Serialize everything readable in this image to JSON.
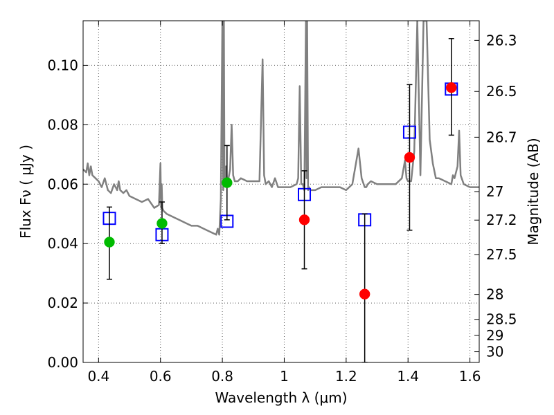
{
  "chart_data": {
    "type": "scatter",
    "xlabel": "Wavelength  λ (μm)",
    "ylabel": "Flux  Fν  ( μJy )",
    "ylabel_right": "Magnitude (AB)",
    "xlim": [
      0.35,
      1.63
    ],
    "ylim": [
      0.0,
      0.115
    ],
    "grid": true,
    "x_ticks": [
      0.4,
      0.6,
      0.8,
      1.0,
      1.2,
      1.4,
      1.6
    ],
    "x_tick_labels": [
      "0.4",
      "0.6",
      "0.8",
      "1",
      "1.2",
      "1.4",
      "1.6"
    ],
    "y_ticks": [
      0.0,
      0.02,
      0.04,
      0.06,
      0.08,
      0.1
    ],
    "y_tick_labels": [
      "0.00",
      "0.02",
      "0.04",
      "0.06",
      "0.08",
      "0.10"
    ],
    "right_ticks": [
      {
        "label": "26.3",
        "flux": 0.1084
      },
      {
        "label": "26.5",
        "flux": 0.0912
      },
      {
        "label": "26.7",
        "flux": 0.0758
      },
      {
        "label": "27",
        "flux": 0.0575
      },
      {
        "label": "27.2",
        "flux": 0.0479
      },
      {
        "label": "27.5",
        "flux": 0.0363
      },
      {
        "label": "28",
        "flux": 0.0229
      },
      {
        "label": "28.5",
        "flux": 0.0145
      },
      {
        "label": "29",
        "flux": 0.0091
      },
      {
        "label": "30",
        "flux": 0.0036
      }
    ],
    "series": [
      {
        "name": "Model spectrum",
        "kind": "line",
        "color": "#808080",
        "x": [
          0.35,
          0.36,
          0.365,
          0.37,
          0.375,
          0.38,
          0.39,
          0.4,
          0.41,
          0.42,
          0.43,
          0.44,
          0.45,
          0.46,
          0.465,
          0.47,
          0.48,
          0.49,
          0.5,
          0.52,
          0.54,
          0.56,
          0.58,
          0.595,
          0.6,
          0.602,
          0.604,
          0.606,
          0.61,
          0.62,
          0.64,
          0.66,
          0.68,
          0.7,
          0.72,
          0.74,
          0.76,
          0.78,
          0.785,
          0.79,
          0.795,
          0.8,
          0.803,
          0.805,
          0.807,
          0.81,
          0.812,
          0.815,
          0.82,
          0.825,
          0.83,
          0.835,
          0.84,
          0.85,
          0.86,
          0.88,
          0.9,
          0.92,
          0.93,
          0.935,
          0.94,
          0.95,
          0.96,
          0.97,
          0.98,
          1.0,
          1.02,
          1.04,
          1.045,
          1.05,
          1.055,
          1.06,
          1.065,
          1.07,
          1.072,
          1.074,
          1.077,
          1.08,
          1.085,
          1.1,
          1.12,
          1.14,
          1.16,
          1.18,
          1.2,
          1.22,
          1.24,
          1.25,
          1.26,
          1.265,
          1.27,
          1.28,
          1.3,
          1.32,
          1.34,
          1.36,
          1.38,
          1.39,
          1.395,
          1.4,
          1.41,
          1.42,
          1.43,
          1.44,
          1.45,
          1.46,
          1.47,
          1.48,
          1.49,
          1.5,
          1.52,
          1.54,
          1.545,
          1.55,
          1.56,
          1.565,
          1.57,
          1.58,
          1.6,
          1.63
        ],
        "y": [
          0.065,
          0.064,
          0.067,
          0.063,
          0.066,
          0.063,
          0.062,
          0.061,
          0.059,
          0.062,
          0.058,
          0.057,
          0.06,
          0.058,
          0.061,
          0.058,
          0.057,
          0.058,
          0.056,
          0.055,
          0.054,
          0.055,
          0.052,
          0.053,
          0.067,
          0.052,
          0.06,
          0.052,
          0.051,
          0.05,
          0.049,
          0.048,
          0.047,
          0.046,
          0.046,
          0.045,
          0.044,
          0.043,
          0.045,
          0.043,
          0.055,
          0.115,
          0.058,
          0.115,
          0.06,
          0.06,
          0.066,
          0.061,
          0.062,
          0.065,
          0.08,
          0.063,
          0.061,
          0.061,
          0.062,
          0.061,
          0.061,
          0.061,
          0.102,
          0.063,
          0.06,
          0.061,
          0.059,
          0.062,
          0.059,
          0.059,
          0.059,
          0.06,
          0.062,
          0.093,
          0.06,
          0.06,
          0.058,
          0.115,
          0.062,
          0.115,
          0.058,
          0.059,
          0.058,
          0.058,
          0.059,
          0.059,
          0.059,
          0.059,
          0.058,
          0.06,
          0.072,
          0.062,
          0.059,
          0.059,
          0.06,
          0.061,
          0.06,
          0.06,
          0.06,
          0.06,
          0.062,
          0.068,
          0.062,
          0.061,
          0.061,
          0.071,
          0.115,
          0.063,
          0.115,
          0.115,
          0.075,
          0.067,
          0.062,
          0.062,
          0.061,
          0.06,
          0.063,
          0.062,
          0.066,
          0.078,
          0.063,
          0.06,
          0.059,
          0.059
        ]
      },
      {
        "name": "Model fluxes",
        "kind": "open-square",
        "color": "#0000ff",
        "x": [
          0.435,
          0.605,
          0.815,
          1.065,
          1.26,
          1.405,
          1.54
        ],
        "y": [
          0.0485,
          0.043,
          0.0475,
          0.0565,
          0.048,
          0.0775,
          0.092
        ]
      },
      {
        "name": "Observed (green)",
        "kind": "filled-circle",
        "color": "#00bb00",
        "x": [
          0.435,
          0.605,
          0.815
        ],
        "y": [
          0.0405,
          0.0468,
          0.0605
        ],
        "err_low": [
          0.0125,
          0.0068,
          0.0125
        ],
        "err_high": [
          0.0118,
          0.0072,
          0.0125
        ]
      },
      {
        "name": "Observed (red)",
        "kind": "filled-circle",
        "color": "#ff0000",
        "x": [
          1.065,
          1.26,
          1.405,
          1.54
        ],
        "y": [
          0.048,
          0.023,
          0.069,
          0.0925
        ],
        "err_low": [
          0.0165,
          0.023,
          0.0245,
          0.016
        ],
        "err_high": [
          0.0165,
          0.027,
          0.0245,
          0.0165
        ]
      }
    ]
  }
}
